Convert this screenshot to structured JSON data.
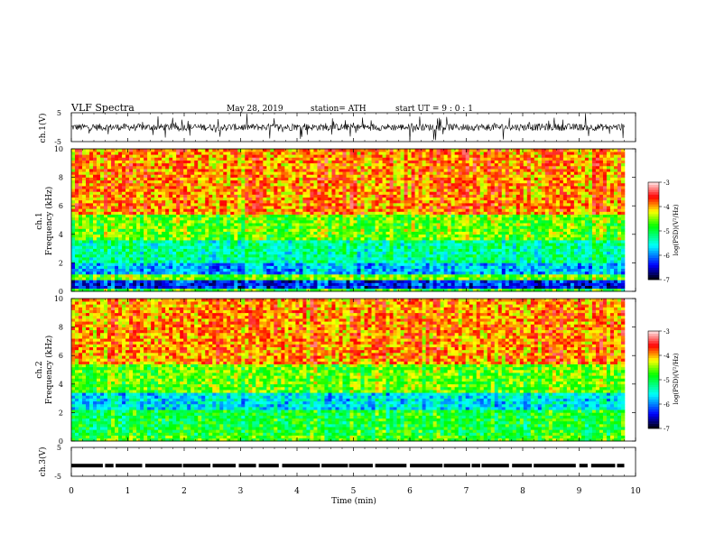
{
  "header": {
    "title": "VLF  Spectra",
    "date": "May 28, 2019",
    "station": "station= ATH",
    "start": "start  UT  =    9  : 0   : 1"
  },
  "chart_data": [
    {
      "type": "line",
      "panel": "ch1-waveform",
      "ylabel": "ch.1(V)",
      "yticks": [
        "5",
        "-5"
      ],
      "ylim": [
        -5,
        5
      ],
      "xlim": [
        0,
        10
      ],
      "data_end_min": 9.8
    },
    {
      "type": "heatmap",
      "panel": "ch1-spectrogram",
      "ylabel_top": "ch.1",
      "ylabel_bottom": "Frequency  (kHz)",
      "ylim": [
        0,
        10
      ],
      "yticks": [
        "0",
        "2",
        "4",
        "6",
        "8",
        "10"
      ],
      "xlim": [
        0,
        10
      ],
      "colorbar_label": "log(PSD)(V²/Hz)",
      "colorbar_ticks": [
        "-3",
        "-4",
        "-5",
        "-6",
        "-7"
      ],
      "colorbar_range": [
        -7,
        -3
      ],
      "bands": [
        {
          "from_khz": 0.0,
          "to_khz": 0.3,
          "level": -4.8
        },
        {
          "from_khz": 0.3,
          "to_khz": 0.8,
          "level": -6.3
        },
        {
          "from_khz": 0.8,
          "to_khz": 1.3,
          "level": -4.6
        },
        {
          "from_khz": 1.3,
          "to_khz": 2.0,
          "level": -5.8
        },
        {
          "from_khz": 2.0,
          "to_khz": 3.6,
          "level": -5.3
        },
        {
          "from_khz": 3.6,
          "to_khz": 5.5,
          "level": -4.6
        },
        {
          "from_khz": 5.5,
          "to_khz": 10.0,
          "level": -3.9
        }
      ]
    },
    {
      "type": "heatmap",
      "panel": "ch2-spectrogram",
      "ylabel_top": "ch.2",
      "ylabel_bottom": "Frequency  (kHz)",
      "ylim": [
        0,
        10
      ],
      "yticks": [
        "0",
        "2",
        "4",
        "6",
        "8",
        "10"
      ],
      "xlim": [
        0,
        10
      ],
      "colorbar_label": "log(PSD)(V²/Hz)",
      "colorbar_ticks": [
        "-3",
        "-4",
        "-5",
        "-6",
        "-7"
      ],
      "colorbar_range": [
        -7,
        -3
      ],
      "bands": [
        {
          "from_khz": 0.0,
          "to_khz": 0.5,
          "level": -4.7
        },
        {
          "from_khz": 0.5,
          "to_khz": 2.2,
          "level": -4.9
        },
        {
          "from_khz": 2.2,
          "to_khz": 3.5,
          "level": -5.6
        },
        {
          "from_khz": 3.5,
          "to_khz": 5.5,
          "level": -4.6
        },
        {
          "from_khz": 5.5,
          "to_khz": 10.0,
          "level": -3.9
        }
      ]
    },
    {
      "type": "line",
      "panel": "ch3-waveform",
      "ylabel": "ch.3(V)",
      "yticks": [
        "5",
        "-5"
      ],
      "ylim": [
        -5,
        5
      ],
      "xlim": [
        0,
        10
      ],
      "baseline_v": -1.3
    }
  ],
  "xaxis": {
    "label": "Time  (min)",
    "ticks": [
      "0",
      "1",
      "2",
      "3",
      "4",
      "5",
      "6",
      "7",
      "8",
      "9",
      "10"
    ]
  },
  "colors": {
    "frame": "#000000",
    "scale": [
      "#000000",
      "#0000ff",
      "#00ffff",
      "#00ff00",
      "#ffff00",
      "#ff0000",
      "#ffffff"
    ]
  }
}
